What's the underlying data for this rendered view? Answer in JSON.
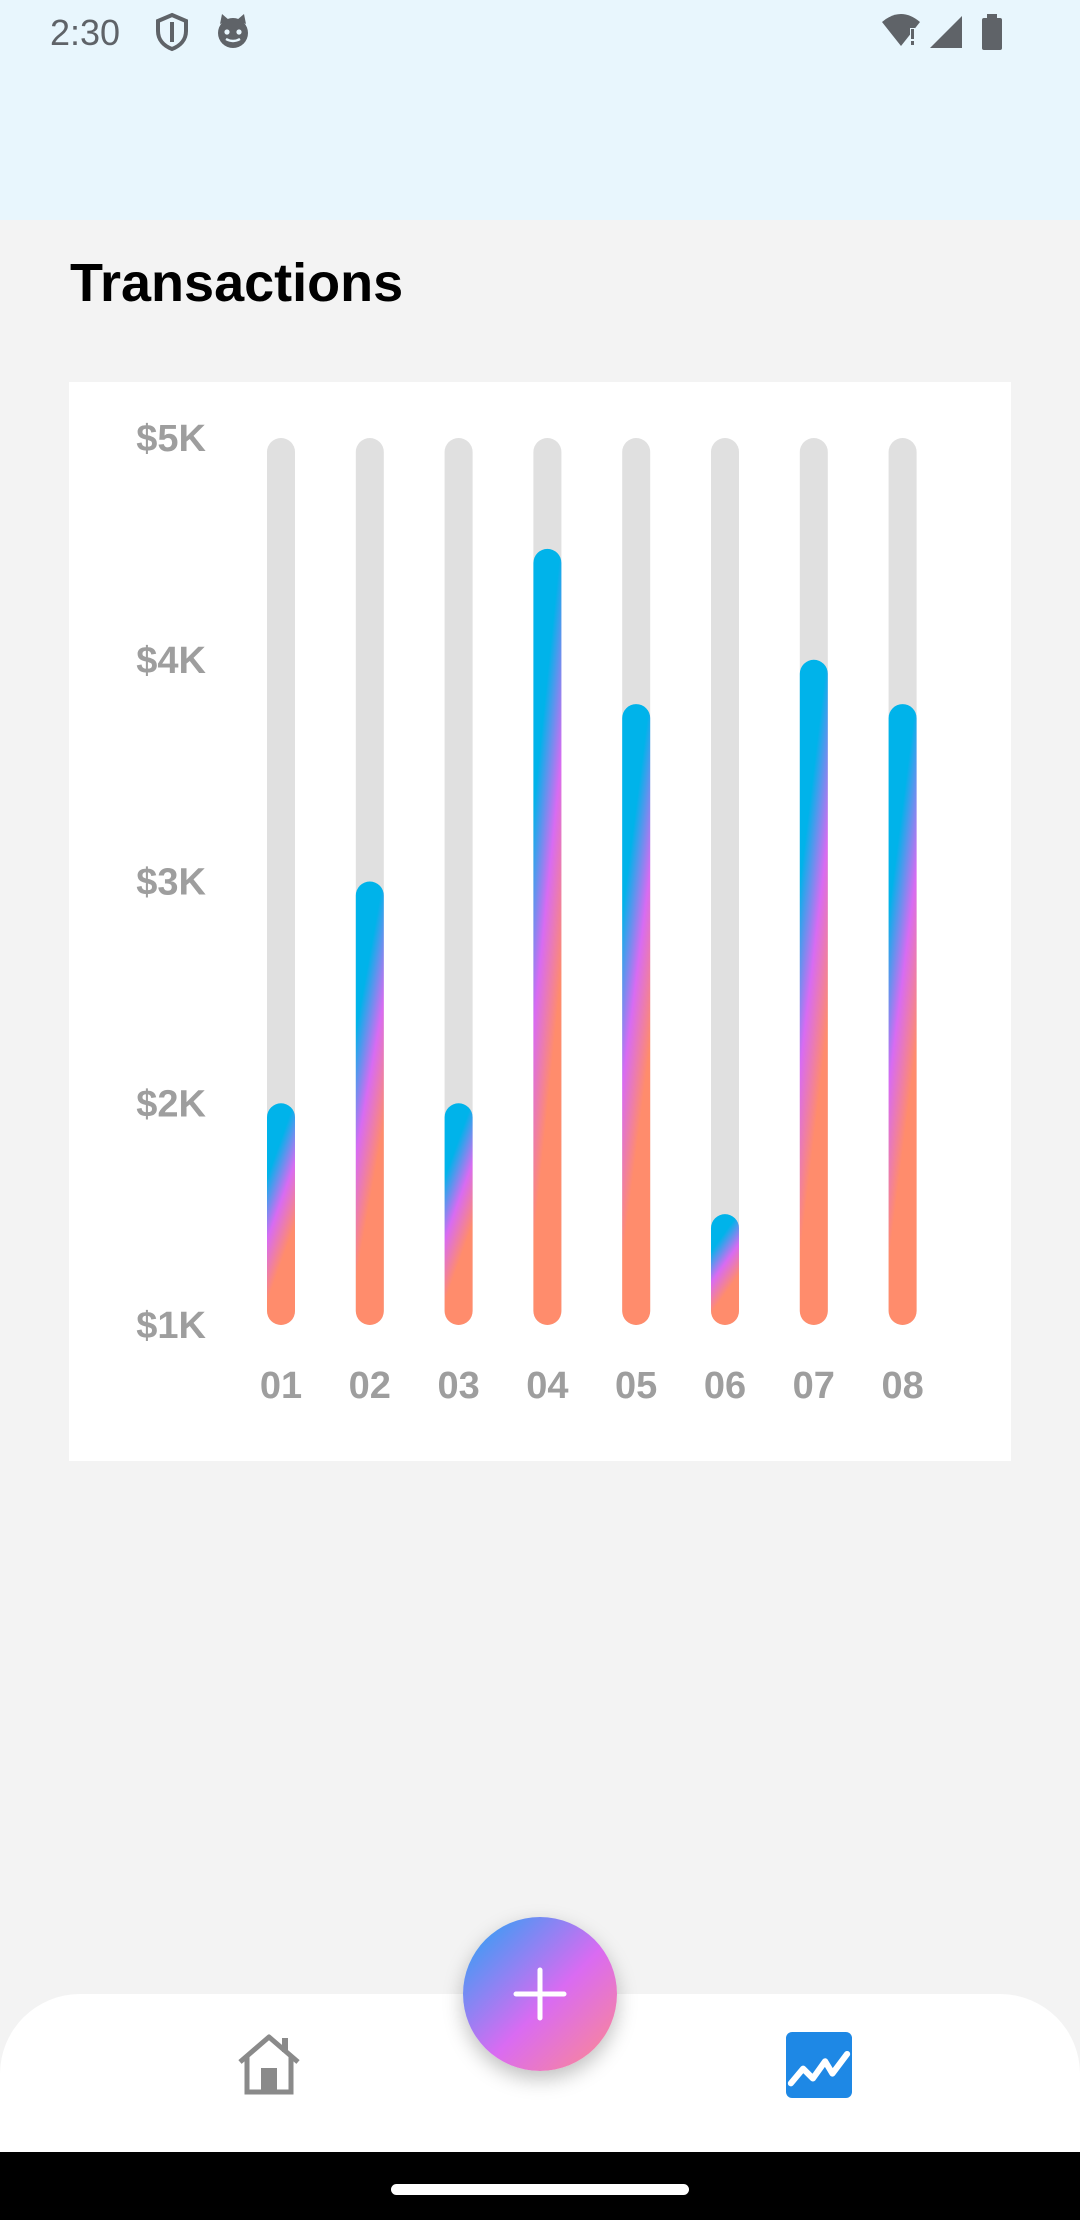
{
  "status_bar": {
    "time": "2:30",
    "icons": [
      "shield-icon",
      "cat-face-icon",
      "wifi-icon",
      "signal-icon",
      "battery-icon"
    ]
  },
  "page": {
    "title": "Transactions"
  },
  "chart_data": {
    "type": "bar",
    "categories": [
      "01",
      "02",
      "03",
      "04",
      "05",
      "06",
      "07",
      "08"
    ],
    "values": [
      2000,
      3000,
      2000,
      4500,
      3800,
      1500,
      4000,
      3800
    ],
    "y_tick_labels": [
      "$5K",
      "$4K",
      "$3K",
      "$2K",
      "$1K"
    ],
    "y_tick_values": [
      5000,
      4000,
      3000,
      2000,
      1000
    ],
    "ylim": [
      1000,
      5000
    ],
    "title": "",
    "xlabel": "",
    "ylabel": "",
    "grid": false,
    "colors": {
      "track": "#e0e0e0",
      "bar_top": "#00b3ea",
      "bar_mid": "#d86bf2",
      "bar_bottom": "#ff8c6c"
    }
  },
  "bottom_nav": {
    "items": [
      {
        "icon": "home-icon",
        "active": false
      },
      {
        "icon": "chart-icon",
        "active": true
      }
    ],
    "fab_icon": "plus-icon",
    "active_color": "#1e88e5",
    "inactive_color": "#8a8a8a"
  }
}
